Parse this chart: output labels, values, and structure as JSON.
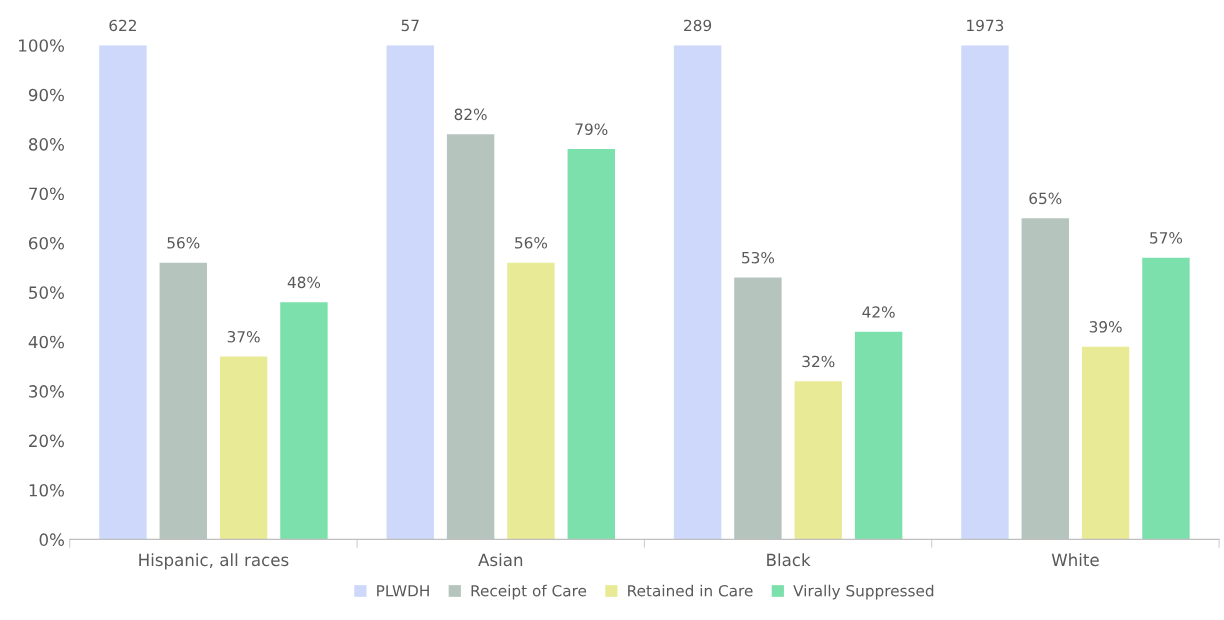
{
  "chart_data": {
    "type": "bar",
    "categories": [
      "Hispanic, all races",
      "Asian",
      "Black",
      "White"
    ],
    "series": [
      {
        "name": "PLWDH",
        "color": "#cdd8fb",
        "values": [
          100,
          100,
          100,
          100
        ]
      },
      {
        "name": "Receipt of Care",
        "color": "#b5c4bd",
        "values": [
          56,
          82,
          53,
          65
        ],
        "value_labels": [
          "56%",
          "82%",
          "53%",
          "65%"
        ]
      },
      {
        "name": "Retained in Care",
        "color": "#e8ea95",
        "values": [
          37,
          56,
          32,
          39
        ],
        "value_labels": [
          "37%",
          "56%",
          "32%",
          "39%"
        ]
      },
      {
        "name": "Virally Suppressed",
        "color": "#7be0ab",
        "values": [
          48,
          79,
          42,
          57
        ],
        "value_labels": [
          "48%",
          "79%",
          "42%",
          "57%"
        ]
      }
    ],
    "ylim": [
      0,
      100
    ],
    "yticks": [
      {
        "value": 0,
        "label": "0%"
      },
      {
        "value": 10,
        "label": "10%"
      },
      {
        "value": 20,
        "label": "20%"
      },
      {
        "value": 30,
        "label": "30%"
      },
      {
        "value": 40,
        "label": "40%"
      },
      {
        "value": 50,
        "label": "50%"
      },
      {
        "value": 60,
        "label": "60%"
      },
      {
        "value": 70,
        "label": "70%"
      },
      {
        "value": 80,
        "label": "80%"
      },
      {
        "value": 90,
        "label": "90%"
      },
      {
        "value": 100,
        "label": "100%"
      }
    ],
    "annotations": [
      "622",
      "57",
      "289",
      "1973"
    ],
    "grid": false,
    "legend": "bottom"
  }
}
